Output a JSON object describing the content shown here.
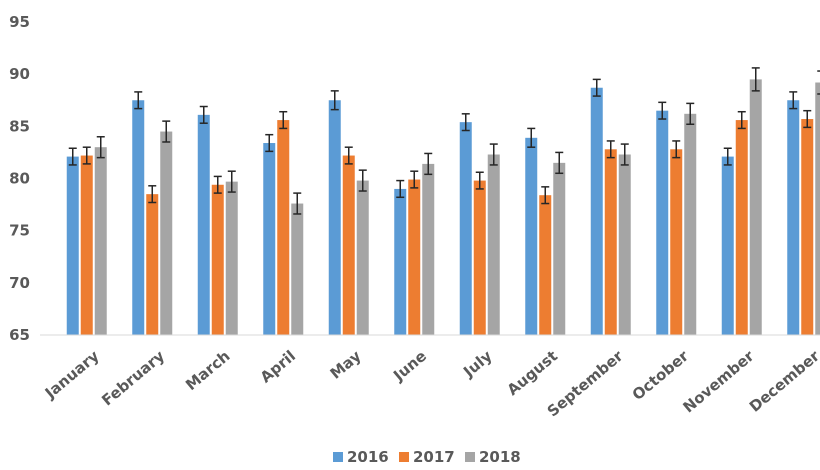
{
  "chart_data": {
    "type": "bar",
    "categories": [
      "January",
      "February",
      "March",
      "April",
      "May",
      "June",
      "July",
      "August",
      "September",
      "October",
      "November",
      "December"
    ],
    "series": [
      {
        "name": "2016",
        "color": "#5B9BD5",
        "values": [
          82.1,
          87.5,
          86.1,
          83.4,
          87.5,
          79.0,
          85.4,
          83.9,
          88.7,
          86.5,
          82.1,
          87.5
        ],
        "errors": [
          0.8,
          0.8,
          0.8,
          0.8,
          0.9,
          0.8,
          0.8,
          0.9,
          0.8,
          0.8,
          0.8,
          0.8
        ]
      },
      {
        "name": "2017",
        "color": "#ED7D31",
        "values": [
          82.2,
          78.5,
          79.4,
          85.6,
          82.2,
          79.9,
          79.8,
          78.4,
          82.8,
          82.8,
          85.6,
          85.7
        ],
        "errors": [
          0.8,
          0.8,
          0.8,
          0.8,
          0.8,
          0.8,
          0.8,
          0.8,
          0.8,
          0.8,
          0.8,
          0.8
        ]
      },
      {
        "name": "2018",
        "color": "#A5A5A5",
        "values": [
          83.0,
          84.5,
          79.7,
          77.6,
          79.8,
          81.4,
          82.3,
          81.5,
          82.3,
          86.2,
          89.5,
          89.2
        ],
        "errors": [
          1.0,
          1.0,
          1.0,
          1.0,
          1.0,
          1.0,
          1.0,
          1.0,
          1.0,
          1.0,
          1.1,
          1.1
        ]
      }
    ],
    "title": "",
    "xlabel": "",
    "ylabel": "",
    "ylim": [
      65,
      95
    ],
    "yticks": [
      65,
      70,
      75,
      80,
      85,
      90,
      95
    ],
    "grid": false,
    "legend": "bottom-center",
    "error_bars": true
  }
}
